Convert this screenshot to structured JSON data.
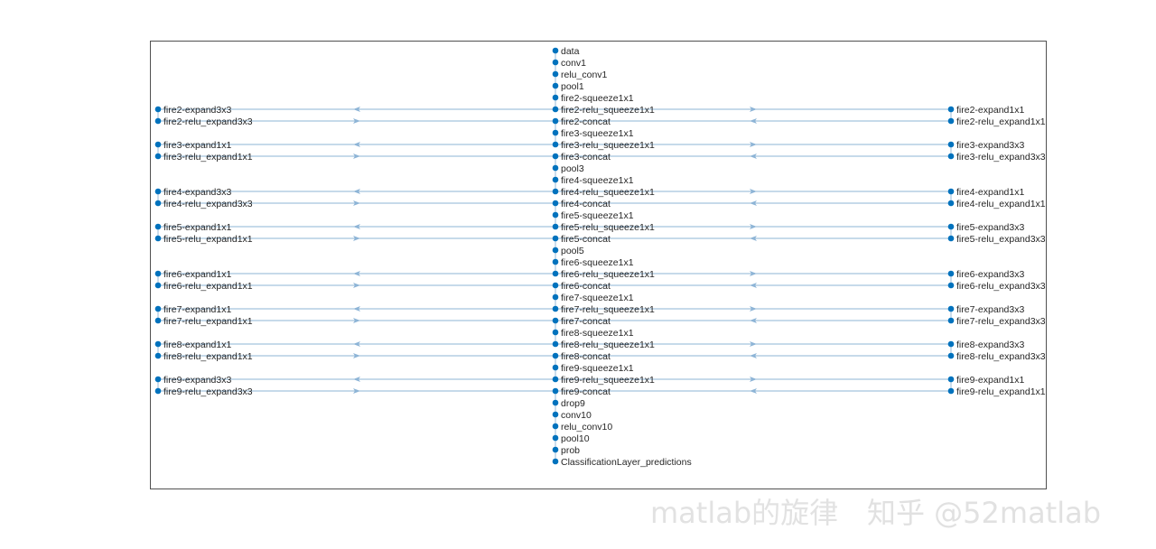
{
  "graph": {
    "node_color": "#0072BD",
    "edge_color": "#8db4d6",
    "center_nodes": [
      "data",
      "conv1",
      "relu_conv1",
      "pool1",
      "fire2-squeeze1x1",
      "fire2-relu_squeeze1x1",
      "fire2-concat",
      "fire3-squeeze1x1",
      "fire3-relu_squeeze1x1",
      "fire3-concat",
      "pool3",
      "fire4-squeeze1x1",
      "fire4-relu_squeeze1x1",
      "fire4-concat",
      "fire5-squeeze1x1",
      "fire5-relu_squeeze1x1",
      "fire5-concat",
      "pool5",
      "fire6-squeeze1x1",
      "fire6-relu_squeeze1x1",
      "fire6-concat",
      "fire7-squeeze1x1",
      "fire7-relu_squeeze1x1",
      "fire7-concat",
      "fire8-squeeze1x1",
      "fire8-relu_squeeze1x1",
      "fire8-concat",
      "fire9-squeeze1x1",
      "fire9-relu_squeeze1x1",
      "fire9-concat",
      "drop9",
      "conv10",
      "relu_conv10",
      "pool10",
      "prob",
      "ClassificationLayer_predictions"
    ],
    "left_nodes": [
      [
        "fire2-expand3x3",
        "fire2-relu_expand3x3"
      ],
      [
        "fire3-expand1x1",
        "fire3-relu_expand1x1"
      ],
      [
        "fire4-expand3x3",
        "fire4-relu_expand3x3"
      ],
      [
        "fire5-expand1x1",
        "fire5-relu_expand1x1"
      ],
      [
        "fire6-expand1x1",
        "fire6-relu_expand1x1"
      ],
      [
        "fire7-expand1x1",
        "fire7-relu_expand1x1"
      ],
      [
        "fire8-expand1x1",
        "fire8-relu_expand1x1"
      ],
      [
        "fire9-expand3x3",
        "fire9-relu_expand3x3"
      ]
    ],
    "right_nodes": [
      [
        "fire2-expand1x1",
        "fire2-relu_expand1x1"
      ],
      [
        "fire3-expand3x3",
        "fire3-relu_expand3x3"
      ],
      [
        "fire4-expand1x1",
        "fire4-relu_expand1x1"
      ],
      [
        "fire5-expand3x3",
        "fire5-relu_expand3x3"
      ],
      [
        "fire6-expand3x3",
        "fire6-relu_expand3x3"
      ],
      [
        "fire7-expand3x3",
        "fire7-relu_expand3x3"
      ],
      [
        "fire8-expand3x3",
        "fire8-relu_expand3x3"
      ],
      [
        "fire9-expand1x1",
        "fire9-relu_expand1x1"
      ]
    ]
  },
  "watermark": {
    "line1": "知乎 @52matlab",
    "line2": "matlab的旋律"
  }
}
